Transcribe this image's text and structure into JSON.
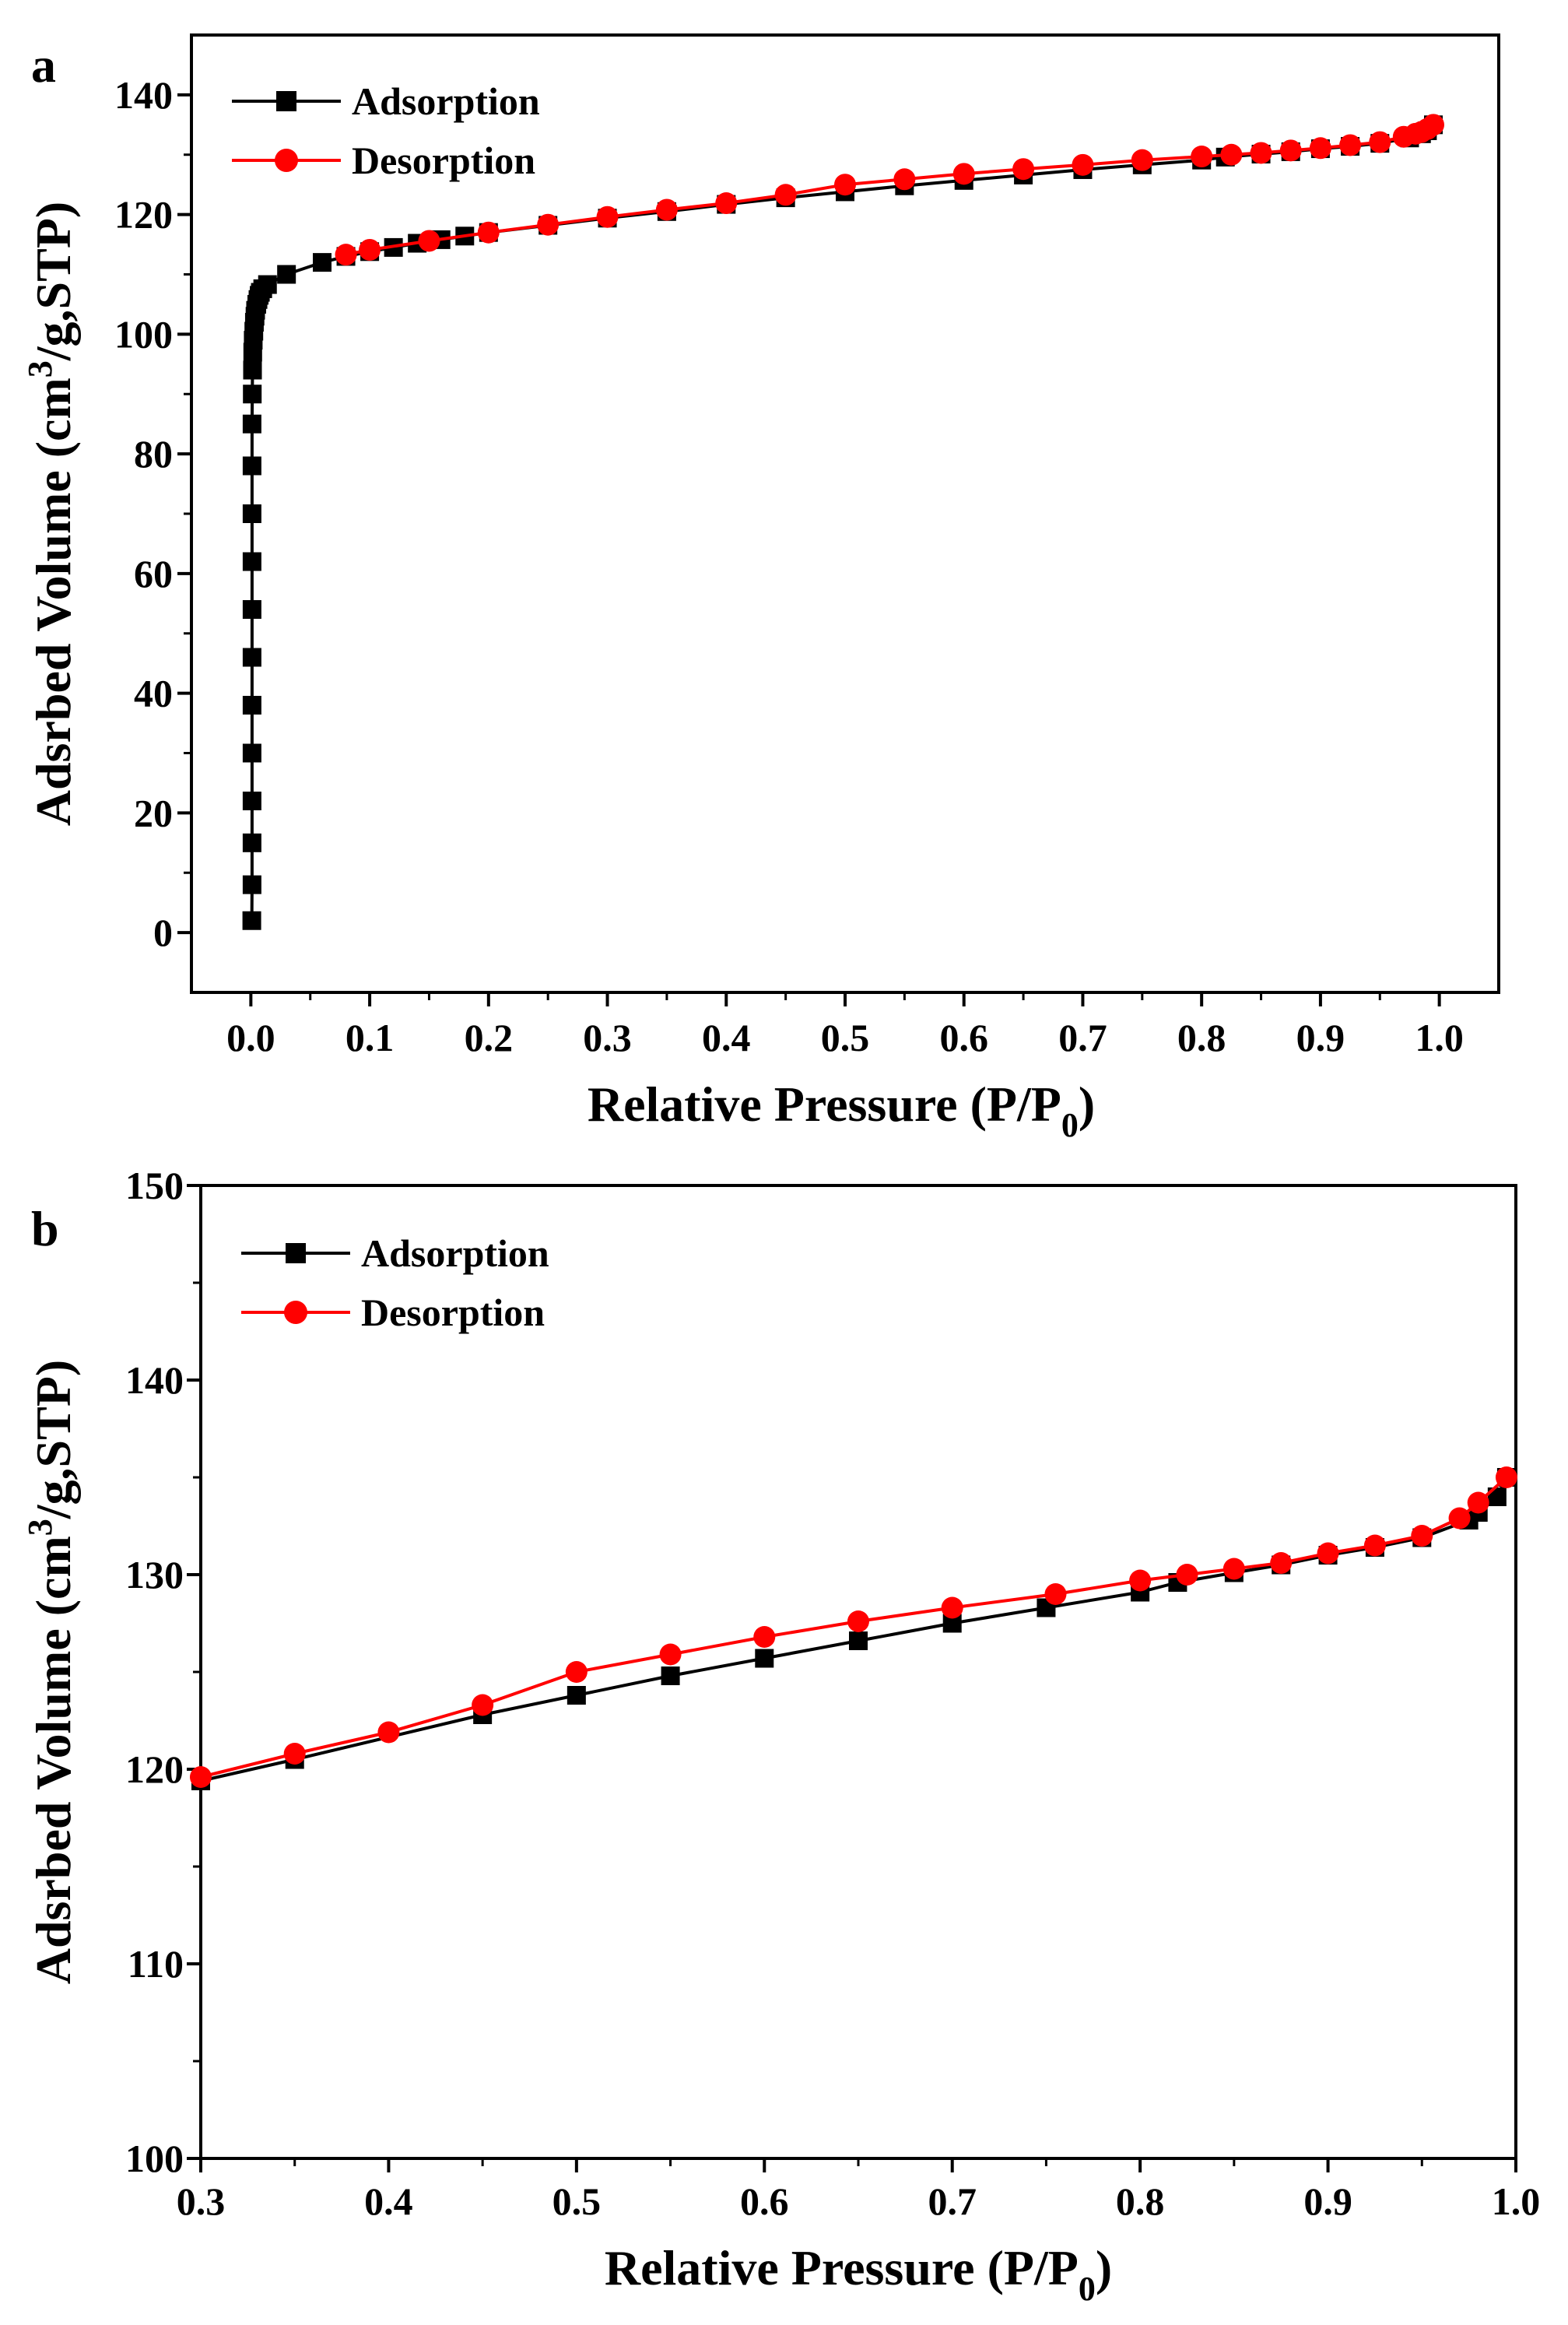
{
  "chart_data": [
    {
      "type": "line",
      "panel_label": "a",
      "xlabel": "Relative Pressure (P/P",
      "xlabel_sub": "0",
      "xlabel_end": ")",
      "ylabel": "Adsrbed Volume (cm",
      "ylabel_sup": "3",
      "ylabel_end": "/g,STP)",
      "xlim": [
        -0.05,
        1.05
      ],
      "ylim": [
        -10,
        150
      ],
      "xticks": [
        0.0,
        0.1,
        0.2,
        0.3,
        0.4,
        0.5,
        0.6,
        0.7,
        0.8,
        0.9,
        1.0
      ],
      "xtick_labels": [
        "0.0",
        "0.1",
        "0.2",
        "0.3",
        "0.4",
        "0.5",
        "0.6",
        "0.7",
        "0.8",
        "0.9",
        "1.0"
      ],
      "yticks": [
        0,
        20,
        40,
        60,
        80,
        100,
        120,
        140
      ],
      "ytick_labels": [
        "0",
        "20",
        "40",
        "60",
        "80",
        "100",
        "120",
        "140"
      ],
      "legend_position": "top-left",
      "series": [
        {
          "name": "Adsorption",
          "color": "#000000",
          "marker": "square",
          "x": [
            0.0008,
            0.001,
            0.001,
            0.001,
            0.001,
            0.001,
            0.001,
            0.001,
            0.001,
            0.001,
            0.001,
            0.001,
            0.0012,
            0.0014,
            0.0016,
            0.002,
            0.0025,
            0.003,
            0.0035,
            0.004,
            0.005,
            0.006,
            0.007,
            0.008,
            0.01,
            0.014,
            0.03,
            0.06,
            0.08,
            0.1,
            0.12,
            0.14,
            0.16,
            0.18,
            0.2,
            0.25,
            0.3,
            0.35,
            0.4,
            0.45,
            0.5,
            0.55,
            0.6,
            0.65,
            0.7,
            0.75,
            0.8,
            0.82,
            0.85,
            0.875,
            0.9,
            0.925,
            0.95,
            0.975,
            0.985,
            0.99,
            0.995
          ],
          "y": [
            2,
            8,
            15,
            22,
            30,
            38,
            46,
            54,
            62,
            70,
            78,
            85,
            90,
            94,
            97,
            99,
            100.5,
            102,
            103,
            104,
            105,
            105.8,
            106.5,
            107,
            107.6,
            108.3,
            110,
            112,
            113,
            113.8,
            114.5,
            115.2,
            115.8,
            116.4,
            117,
            118.2,
            119.4,
            120.5,
            121.7,
            122.8,
            123.8,
            124.8,
            125.7,
            126.6,
            127.5,
            128.3,
            129.1,
            129.6,
            130.1,
            130.5,
            131,
            131.4,
            131.9,
            132.8,
            133.5,
            134,
            135
          ]
        },
        {
          "name": "Desorption",
          "color": "#ff0000",
          "marker": "circle",
          "x": [
            0.995,
            0.99,
            0.985,
            0.98,
            0.97,
            0.95,
            0.925,
            0.9,
            0.875,
            0.85,
            0.825,
            0.8,
            0.75,
            0.7,
            0.65,
            0.6,
            0.55,
            0.5,
            0.45,
            0.4,
            0.35,
            0.3,
            0.25,
            0.2,
            0.15,
            0.1,
            0.08
          ],
          "y": [
            135,
            134.3,
            133.8,
            133.5,
            133,
            132.1,
            131.6,
            131.1,
            130.7,
            130.3,
            130,
            129.7,
            129.1,
            128.3,
            127.6,
            126.8,
            125.9,
            125,
            123.3,
            121.9,
            120.8,
            119.6,
            118.3,
            117,
            115.6,
            114.1,
            113.3
          ]
        }
      ]
    },
    {
      "type": "line",
      "panel_label": "b",
      "xlabel": "Relative Pressure (P/P",
      "xlabel_sub": "0",
      "xlabel_end": ")",
      "ylabel": "Adsrbed Volume (cm",
      "ylabel_sup": "3",
      "ylabel_end": "/g,STP)",
      "xlim": [
        0.3,
        1.0
      ],
      "ylim": [
        100,
        150
      ],
      "xticks": [
        0.3,
        0.4,
        0.5,
        0.6,
        0.7,
        0.8,
        0.9,
        1.0
      ],
      "xtick_labels": [
        "0.3",
        "0.4",
        "0.5",
        "0.6",
        "0.7",
        "0.8",
        "0.9",
        "1.0"
      ],
      "yticks": [
        100,
        110,
        120,
        130,
        140,
        150
      ],
      "ytick_labels": [
        "100",
        "110",
        "120",
        "130",
        "140",
        "150"
      ],
      "legend_position": "top-left",
      "series": [
        {
          "name": "Adsorption",
          "color": "#000000",
          "marker": "square",
          "x": [
            0.3,
            0.35,
            0.45,
            0.5,
            0.55,
            0.6,
            0.65,
            0.7,
            0.75,
            0.8,
            0.82,
            0.85,
            0.875,
            0.9,
            0.925,
            0.95,
            0.975,
            0.98,
            0.99,
            0.995
          ],
          "y": [
            119.4,
            120.5,
            122.8,
            123.8,
            124.8,
            125.7,
            126.6,
            127.5,
            128.3,
            129.1,
            129.6,
            130.1,
            130.5,
            131,
            131.4,
            131.9,
            132.8,
            133.2,
            134,
            135
          ]
        },
        {
          "name": "Desorption",
          "color": "#ff0000",
          "marker": "circle",
          "x": [
            0.995,
            0.98,
            0.97,
            0.95,
            0.925,
            0.9,
            0.875,
            0.85,
            0.825,
            0.8,
            0.755,
            0.7,
            0.65,
            0.6,
            0.55,
            0.5,
            0.45,
            0.4,
            0.35,
            0.3
          ],
          "y": [
            135,
            133.7,
            132.9,
            132,
            131.5,
            131.1,
            130.6,
            130.3,
            130,
            129.7,
            129,
            128.3,
            127.6,
            126.8,
            125.9,
            125,
            123.3,
            121.9,
            120.8,
            119.6
          ]
        }
      ]
    }
  ]
}
